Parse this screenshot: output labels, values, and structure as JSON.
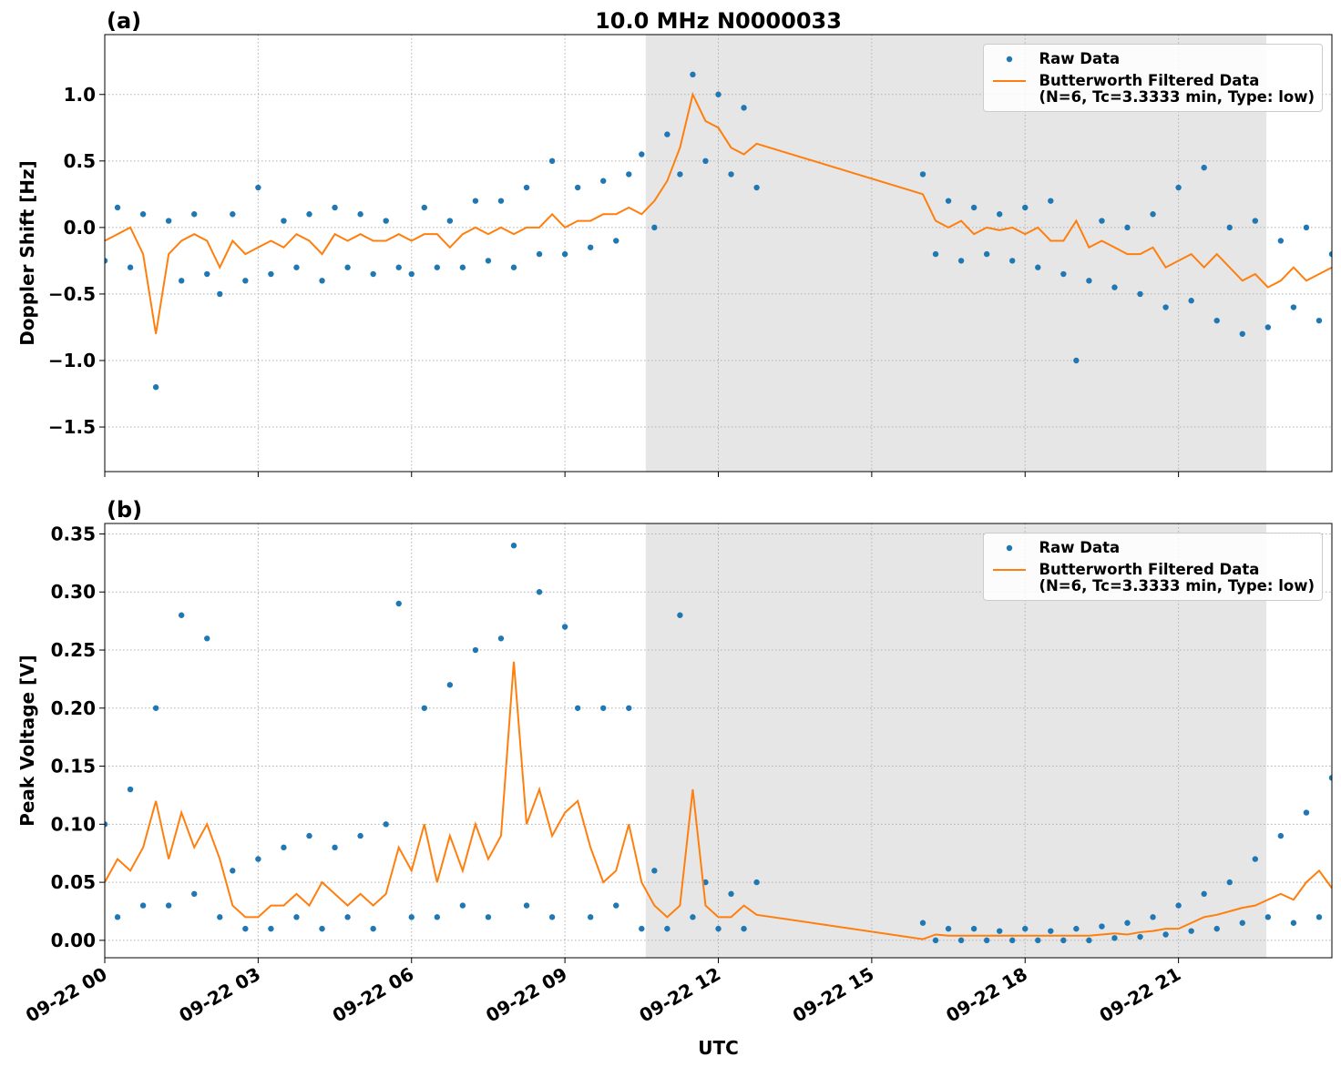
{
  "chart_data": [
    {
      "type": "line",
      "title": "10.0 MHz N0000033",
      "panel_label": "(a)",
      "ylabel": "Doppler Shift [Hz]",
      "x": [
        0,
        0.25,
        0.5,
        0.75,
        1,
        1.25,
        1.5,
        1.75,
        2,
        2.25,
        2.5,
        2.75,
        3,
        3.25,
        3.5,
        3.75,
        4,
        4.25,
        4.5,
        4.75,
        5,
        5.25,
        5.5,
        5.75,
        6,
        6.25,
        6.5,
        6.75,
        7,
        7.25,
        7.5,
        7.75,
        8,
        8.25,
        8.5,
        8.75,
        9,
        9.25,
        9.5,
        9.75,
        10,
        10.25,
        10.5,
        10.75,
        11,
        11.25,
        11.5,
        11.75,
        12,
        12.25,
        12.5,
        12.75,
        16,
        16.25,
        16.5,
        16.75,
        17,
        17.25,
        17.5,
        17.75,
        18,
        18.25,
        18.5,
        18.75,
        19,
        19.25,
        19.5,
        19.75,
        20,
        20.25,
        20.5,
        20.75,
        21,
        21.25,
        21.5,
        21.75,
        22,
        22.25,
        22.5,
        22.75,
        23,
        23.25,
        23.5,
        23.75,
        24
      ],
      "series": [
        {
          "name": "Raw Data",
          "color": "#1f77b4",
          "style": "markers",
          "values": [
            -0.25,
            0.15,
            -0.3,
            0.1,
            -1.2,
            0.05,
            -0.4,
            0.1,
            -0.35,
            -0.5,
            0.1,
            -0.4,
            0.3,
            -0.35,
            0.05,
            -0.3,
            0.1,
            -0.4,
            0.15,
            -0.3,
            0.1,
            -0.35,
            0.05,
            -0.3,
            -0.35,
            0.15,
            -0.3,
            0.05,
            -0.3,
            0.2,
            -0.25,
            0.2,
            -0.3,
            0.3,
            -0.2,
            0.5,
            -0.2,
            0.3,
            -0.15,
            0.35,
            -0.1,
            0.4,
            0.55,
            0.0,
            0.7,
            0.4,
            1.15,
            0.5,
            1.0,
            0.4,
            0.9,
            0.3,
            0.4,
            -0.2,
            0.2,
            -0.25,
            0.15,
            -0.2,
            0.1,
            -0.25,
            0.15,
            -0.3,
            0.2,
            -0.35,
            -1.0,
            -0.4,
            0.05,
            -0.45,
            0.0,
            -0.5,
            0.1,
            -0.6,
            0.3,
            -0.55,
            0.45,
            -0.7,
            0.0,
            -0.8,
            0.05,
            -0.75,
            -0.1,
            -0.6,
            0.0,
            -0.7,
            -0.2
          ]
        },
        {
          "name": "Butterworth Filtered Data\n(N=6, Tc=3.3333 min, Type: low)",
          "color": "#ff7f0e",
          "style": "line",
          "values": [
            -0.1,
            -0.05,
            0.0,
            -0.2,
            -0.8,
            -0.2,
            -0.1,
            -0.05,
            -0.1,
            -0.3,
            -0.1,
            -0.2,
            -0.15,
            -0.1,
            -0.15,
            -0.05,
            -0.1,
            -0.2,
            -0.05,
            -0.1,
            -0.05,
            -0.1,
            -0.1,
            -0.05,
            -0.1,
            -0.05,
            -0.05,
            -0.15,
            -0.05,
            0.0,
            -0.05,
            0.0,
            -0.05,
            0.0,
            0.0,
            0.1,
            0.0,
            0.05,
            0.05,
            0.1,
            0.1,
            0.15,
            0.1,
            0.2,
            0.35,
            0.6,
            1.0,
            0.8,
            0.75,
            0.6,
            0.55,
            0.63,
            0.25,
            0.05,
            0.0,
            0.05,
            -0.05,
            0.0,
            -0.02,
            0.0,
            -0.05,
            0.0,
            -0.1,
            -0.1,
            0.05,
            -0.15,
            -0.1,
            -0.15,
            -0.2,
            -0.2,
            -0.15,
            -0.3,
            -0.25,
            -0.2,
            -0.3,
            -0.2,
            -0.3,
            -0.4,
            -0.35,
            -0.45,
            -0.4,
            -0.3,
            -0.4,
            -0.35,
            -0.3
          ]
        }
      ],
      "xlim": [
        0,
        24
      ],
      "xticks": [
        0,
        3,
        6,
        9,
        12,
        15,
        18,
        21
      ],
      "ylim": [
        -1.835,
        1.45
      ],
      "yticks": [
        {
          "value": -1.5,
          "label": "−1.5"
        },
        {
          "value": -1.0,
          "label": "−1.0"
        },
        {
          "value": -0.5,
          "label": "−0.5"
        },
        {
          "value": 0.0,
          "label": "0.0"
        },
        {
          "value": 0.5,
          "label": "0.5"
        },
        {
          "value": 1.0,
          "label": "1.0"
        }
      ],
      "shaded_span": [
        10.58,
        22.72
      ],
      "grid": true,
      "legend": "upper right"
    },
    {
      "type": "line",
      "panel_label": "(b)",
      "ylabel": "Peak Voltage [V]",
      "xlabel": "UTC",
      "x": [
        0,
        0.25,
        0.5,
        0.75,
        1,
        1.25,
        1.5,
        1.75,
        2,
        2.25,
        2.5,
        2.75,
        3,
        3.25,
        3.5,
        3.75,
        4,
        4.25,
        4.5,
        4.75,
        5,
        5.25,
        5.5,
        5.75,
        6,
        6.25,
        6.5,
        6.75,
        7,
        7.25,
        7.5,
        7.75,
        8,
        8.25,
        8.5,
        8.75,
        9,
        9.25,
        9.5,
        9.75,
        10,
        10.25,
        10.5,
        10.75,
        11,
        11.25,
        11.5,
        11.75,
        12,
        12.25,
        12.5,
        12.75,
        16,
        16.25,
        16.5,
        16.75,
        17,
        17.25,
        17.5,
        17.75,
        18,
        18.25,
        18.5,
        18.75,
        19,
        19.25,
        19.5,
        19.75,
        20,
        20.25,
        20.5,
        20.75,
        21,
        21.25,
        21.5,
        21.75,
        22,
        22.25,
        22.5,
        22.75,
        23,
        23.25,
        23.5,
        23.75,
        24
      ],
      "series": [
        {
          "name": "Raw Data",
          "color": "#1f77b4",
          "style": "markers",
          "values": [
            0.1,
            0.02,
            0.13,
            0.03,
            0.2,
            0.03,
            0.28,
            0.04,
            0.26,
            0.02,
            0.06,
            0.01,
            0.07,
            0.01,
            0.08,
            0.02,
            0.09,
            0.01,
            0.08,
            0.02,
            0.09,
            0.01,
            0.1,
            0.29,
            0.02,
            0.2,
            0.02,
            0.22,
            0.03,
            0.25,
            0.02,
            0.26,
            0.34,
            0.03,
            0.3,
            0.02,
            0.27,
            0.2,
            0.02,
            0.2,
            0.03,
            0.2,
            0.01,
            0.06,
            0.01,
            0.28,
            0.02,
            0.05,
            0.01,
            0.04,
            0.01,
            0.05,
            0.015,
            0.0,
            0.01,
            0.0,
            0.01,
            0.0,
            0.008,
            0.0,
            0.01,
            0.0,
            0.008,
            0.0,
            0.01,
            0.0,
            0.012,
            0.002,
            0.015,
            0.003,
            0.02,
            0.005,
            0.03,
            0.008,
            0.04,
            0.01,
            0.05,
            0.015,
            0.07,
            0.02,
            0.09,
            0.015,
            0.11,
            0.02,
            0.14
          ]
        },
        {
          "name": "Butterworth Filtered Data\n(N=6, Tc=3.3333 min, Type: low)",
          "color": "#ff7f0e",
          "style": "line",
          "values": [
            0.05,
            0.07,
            0.06,
            0.08,
            0.12,
            0.07,
            0.11,
            0.08,
            0.1,
            0.07,
            0.03,
            0.02,
            0.02,
            0.03,
            0.03,
            0.04,
            0.03,
            0.05,
            0.04,
            0.03,
            0.04,
            0.03,
            0.04,
            0.08,
            0.06,
            0.1,
            0.05,
            0.09,
            0.06,
            0.1,
            0.07,
            0.09,
            0.24,
            0.1,
            0.13,
            0.09,
            0.11,
            0.12,
            0.08,
            0.05,
            0.06,
            0.1,
            0.05,
            0.03,
            0.02,
            0.03,
            0.13,
            0.03,
            0.02,
            0.02,
            0.03,
            0.022,
            0.001,
            0.005,
            0.004,
            0.004,
            0.004,
            0.004,
            0.004,
            0.004,
            0.004,
            0.004,
            0.004,
            0.004,
            0.004,
            0.004,
            0.005,
            0.006,
            0.005,
            0.007,
            0.008,
            0.01,
            0.01,
            0.015,
            0.02,
            0.022,
            0.025,
            0.028,
            0.03,
            0.035,
            0.04,
            0.035,
            0.05,
            0.06,
            0.045
          ]
        }
      ],
      "xlim": [
        0,
        24
      ],
      "xticks": [
        {
          "value": 0,
          "label": "09-22 00"
        },
        {
          "value": 3,
          "label": "09-22 03"
        },
        {
          "value": 6,
          "label": "09-22 06"
        },
        {
          "value": 9,
          "label": "09-22 09"
        },
        {
          "value": 12,
          "label": "09-22 12"
        },
        {
          "value": 15,
          "label": "09-22 15"
        },
        {
          "value": 18,
          "label": "09-22 18"
        },
        {
          "value": 21,
          "label": "09-22 21"
        }
      ],
      "ylim": [
        -0.015,
        0.359
      ],
      "yticks": [
        {
          "value": 0.0,
          "label": "0.00"
        },
        {
          "value": 0.05,
          "label": "0.05"
        },
        {
          "value": 0.1,
          "label": "0.10"
        },
        0.15,
        {
          "value": 0.2,
          "label": "0.20"
        },
        0.25,
        {
          "value": 0.3,
          "label": "0.30"
        },
        0.35
      ],
      "shaded_span": [
        10.58,
        22.72
      ],
      "grid": true,
      "legend": "upper right"
    }
  ]
}
